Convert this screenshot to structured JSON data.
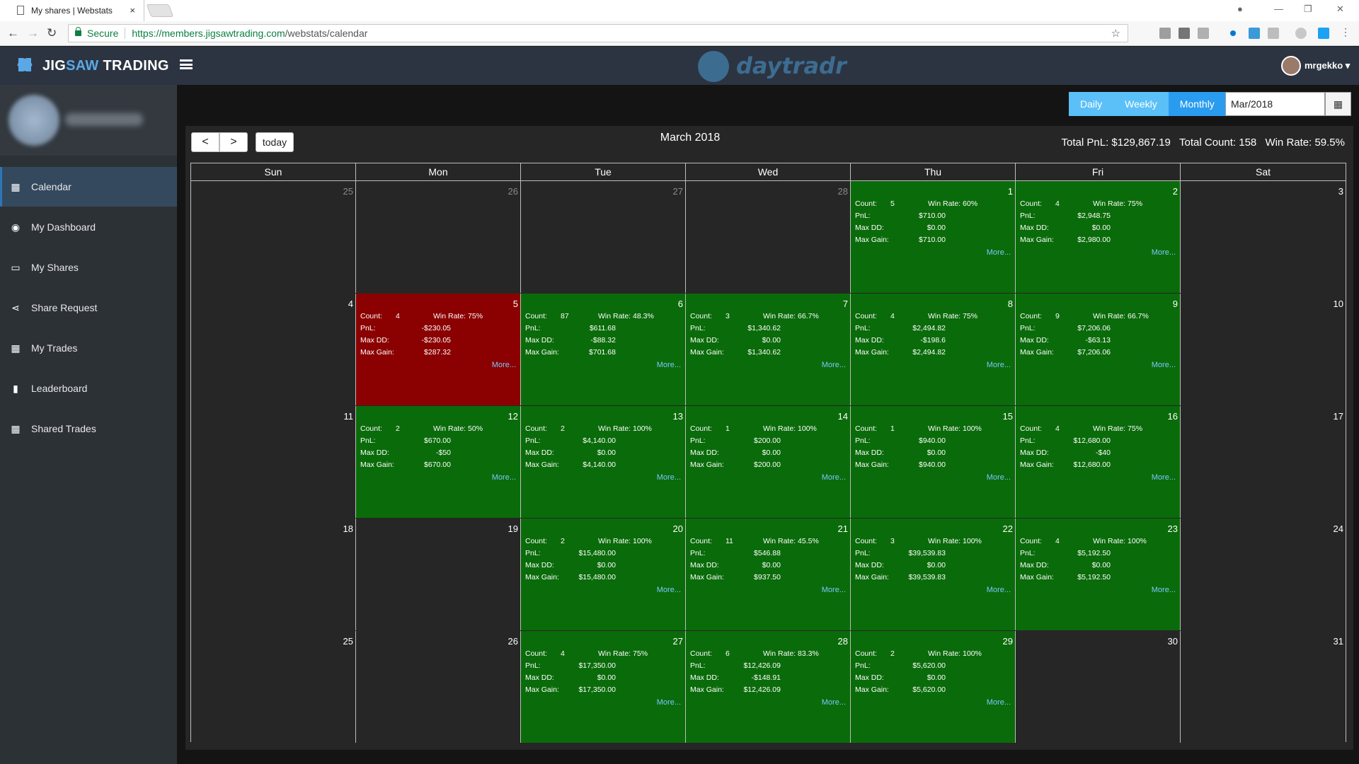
{
  "browser": {
    "tab_title": "My shares | Webstats",
    "tab_close": "×",
    "secure_label": "Secure",
    "url_host": "https://members.jigsawtrading.com",
    "url_path": "/webstats/calendar",
    "star_glyph": "☆"
  },
  "header": {
    "brand_a": "JIG",
    "brand_b": "SAW",
    "brand_c": " TRADING",
    "product": "daytradr",
    "username": "mrgekko ▾"
  },
  "sidebar": {
    "items": [
      {
        "label": "Calendar",
        "icon": "calendar-icon",
        "glyph": "▦"
      },
      {
        "label": "My Dashboard",
        "icon": "dashboard-icon",
        "glyph": "◉"
      },
      {
        "label": "My Shares",
        "icon": "monitor-icon",
        "glyph": "▭"
      },
      {
        "label": "Share Request",
        "icon": "share-icon",
        "glyph": "⋖"
      },
      {
        "label": "My Trades",
        "icon": "table-icon",
        "glyph": "▦"
      },
      {
        "label": "Leaderboard",
        "icon": "bar-chart-icon",
        "glyph": "▮"
      },
      {
        "label": "Shared Trades",
        "icon": "table-icon",
        "glyph": "▦"
      }
    ]
  },
  "controls": {
    "daily": "Daily",
    "weekly": "Weekly",
    "monthly": "Monthly",
    "month_value": "Mar/2018",
    "prev": "<",
    "next": ">",
    "today": "today",
    "cal_glyph": "▦"
  },
  "calendar": {
    "title": "March 2018",
    "total_pnl": "Total PnL: $129,867.19",
    "total_count": "Total Count: 158",
    "win_rate": "Win Rate: 59.5%",
    "days_of_week": [
      "Sun",
      "Mon",
      "Tue",
      "Wed",
      "Thu",
      "Fri",
      "Sat"
    ],
    "labels": {
      "count": "Count:",
      "win_rate": "Win Rate:",
      "pnl": "PnL:",
      "max_dd": "Max DD:",
      "max_gain": "Max Gain:",
      "more": "More..."
    },
    "weeks": [
      [
        {
          "day": "25",
          "other": true
        },
        {
          "day": "26",
          "other": true
        },
        {
          "day": "27",
          "other": true
        },
        {
          "day": "28",
          "other": true
        },
        {
          "day": "1",
          "color": "green",
          "count": "5",
          "win": "60%",
          "pnl": "$710.00",
          "dd": "$0.00",
          "gain": "$710.00"
        },
        {
          "day": "2",
          "color": "green",
          "count": "4",
          "win": "75%",
          "pnl": "$2,948.75",
          "dd": "$0.00",
          "gain": "$2,980.00"
        },
        {
          "day": "3"
        }
      ],
      [
        {
          "day": "4"
        },
        {
          "day": "5",
          "color": "red",
          "count": "4",
          "win": "75%",
          "pnl": "-$230.05",
          "dd": "-$230.05",
          "gain": "$287.32"
        },
        {
          "day": "6",
          "color": "green",
          "count": "87",
          "win": "48.3%",
          "pnl": "$611.68",
          "dd": "-$88.32",
          "gain": "$701.68"
        },
        {
          "day": "7",
          "color": "green",
          "count": "3",
          "win": "66.7%",
          "pnl": "$1,340.62",
          "dd": "$0.00",
          "gain": "$1,340.62"
        },
        {
          "day": "8",
          "color": "green",
          "count": "4",
          "win": "75%",
          "pnl": "$2,494.82",
          "dd": "-$198.6",
          "gain": "$2,494.82"
        },
        {
          "day": "9",
          "color": "green",
          "count": "9",
          "win": "66.7%",
          "pnl": "$7,206.06",
          "dd": "-$63.13",
          "gain": "$7,206.06"
        },
        {
          "day": "10"
        }
      ],
      [
        {
          "day": "11"
        },
        {
          "day": "12",
          "color": "green",
          "count": "2",
          "win": "50%",
          "pnl": "$670.00",
          "dd": "-$50",
          "gain": "$670.00"
        },
        {
          "day": "13",
          "color": "green",
          "count": "2",
          "win": "100%",
          "pnl": "$4,140.00",
          "dd": "$0.00",
          "gain": "$4,140.00"
        },
        {
          "day": "14",
          "color": "green",
          "count": "1",
          "win": "100%",
          "pnl": "$200.00",
          "dd": "$0.00",
          "gain": "$200.00"
        },
        {
          "day": "15",
          "color": "green",
          "count": "1",
          "win": "100%",
          "pnl": "$940.00",
          "dd": "$0.00",
          "gain": "$940.00"
        },
        {
          "day": "16",
          "color": "green",
          "count": "4",
          "win": "75%",
          "pnl": "$12,680.00",
          "dd": "-$40",
          "gain": "$12,680.00"
        },
        {
          "day": "17"
        }
      ],
      [
        {
          "day": "18"
        },
        {
          "day": "19"
        },
        {
          "day": "20",
          "color": "green",
          "count": "2",
          "win": "100%",
          "pnl": "$15,480.00",
          "dd": "$0.00",
          "gain": "$15,480.00"
        },
        {
          "day": "21",
          "color": "green",
          "count": "11",
          "win": "45.5%",
          "pnl": "$546.88",
          "dd": "$0.00",
          "gain": "$937.50"
        },
        {
          "day": "22",
          "color": "green",
          "count": "3",
          "win": "100%",
          "pnl": "$39,539.83",
          "dd": "$0.00",
          "gain": "$39,539.83"
        },
        {
          "day": "23",
          "color": "green",
          "count": "4",
          "win": "100%",
          "pnl": "$5,192.50",
          "dd": "$0.00",
          "gain": "$5,192.50"
        },
        {
          "day": "24"
        }
      ],
      [
        {
          "day": "25"
        },
        {
          "day": "26"
        },
        {
          "day": "27",
          "color": "green",
          "count": "4",
          "win": "75%",
          "pnl": "$17,350.00",
          "dd": "$0.00",
          "gain": "$17,350.00"
        },
        {
          "day": "28",
          "color": "green",
          "count": "6",
          "win": "83.3%",
          "pnl": "$12,426.09",
          "dd": "-$148.91",
          "gain": "$12,426.09"
        },
        {
          "day": "29",
          "color": "green",
          "count": "2",
          "win": "100%",
          "pnl": "$5,620.00",
          "dd": "$0.00",
          "gain": "$5,620.00"
        },
        {
          "day": "30"
        },
        {
          "day": "31"
        }
      ]
    ]
  }
}
